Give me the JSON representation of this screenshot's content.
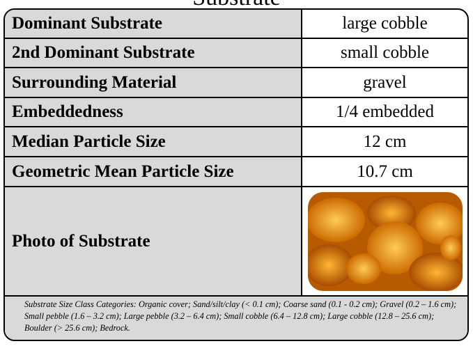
{
  "title": "Substrate",
  "table": {
    "rows": [
      [
        "Dominant Substrate",
        "large cobble"
      ],
      [
        "2nd Dominant Substrate",
        "small cobble"
      ],
      [
        "Surrounding Material",
        "gravel"
      ],
      [
        "Embeddedness",
        "1/4 embedded"
      ],
      [
        "Median Particle Size",
        "12 cm"
      ],
      [
        "Geometric Mean Particle Size",
        "10.7 cm"
      ],
      [
        "Photo of Substrate"
      ]
    ]
  },
  "footnote": "Substrate Size Class Categories: Organic cover; Sand/silt/clay (< 0.1 cm); Coarse sand (0.1 - 0.2 cm); Gravel (0.2 – 1.6 cm); Small pebble (1.6 – 3.2 cm); Large pebble (3.2 – 6.4 cm); Small cobble (6.4 – 12.8 cm); Large cobble (12.8 – 25.6 cm); Boulder (> 25.6 cm); Bedrock."
}
